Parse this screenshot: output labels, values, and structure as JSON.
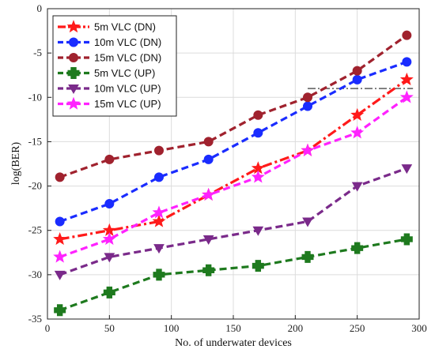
{
  "chart_data": {
    "type": "line",
    "xlabel": "No. of underwater devices",
    "ylabel": "log(BER)",
    "xlim": [
      0,
      300
    ],
    "ylim": [
      -35,
      0
    ],
    "xticks": [
      0,
      50,
      100,
      150,
      200,
      250,
      300
    ],
    "yticks": [
      0,
      -5,
      -10,
      -15,
      -20,
      -25,
      -30,
      -35
    ],
    "grid": true,
    "legend_position": "top-left",
    "threshold": {
      "y": -9,
      "x_start": 210,
      "x_end": 295,
      "color": "#222222"
    },
    "x": [
      10,
      50,
      90,
      130,
      170,
      210,
      250,
      290
    ],
    "series": [
      {
        "name": "5m VLC (DN)",
        "color": "#ff1a1a",
        "style": "dashdot",
        "marker": "star",
        "values": [
          -26,
          -25,
          -24,
          -21,
          -18,
          -16,
          -12,
          -8
        ]
      },
      {
        "name": "10m VLC (DN)",
        "color": "#1a2cff",
        "style": "dashed",
        "marker": "circle",
        "values": [
          -24,
          -22,
          -19,
          -17,
          -14,
          -11,
          -8,
          -6
        ]
      },
      {
        "name": "15m VLC (DN)",
        "color": "#a0222e",
        "style": "dashed",
        "marker": "circle",
        "values": [
          -19,
          -17,
          -16,
          -15,
          -12,
          -10,
          -7,
          -3
        ]
      },
      {
        "name": "5m VLC (UP)",
        "color": "#1e7a1e",
        "style": "dashed",
        "marker": "plus",
        "values": [
          -34,
          -32,
          -30,
          -29.5,
          -29,
          -28,
          -27,
          -26
        ]
      },
      {
        "name": "10m VLC (UP)",
        "color": "#7a2a8a",
        "style": "dashed",
        "marker": "triangle",
        "values": [
          -30,
          -28,
          -27,
          -26,
          -25,
          -24,
          -20,
          -18
        ]
      },
      {
        "name": "15m VLC (UP)",
        "color": "#ff22ff",
        "style": "dashed",
        "marker": "star",
        "values": [
          -28,
          -26,
          -23,
          -21,
          -19,
          -16,
          -14,
          -10
        ]
      }
    ]
  }
}
